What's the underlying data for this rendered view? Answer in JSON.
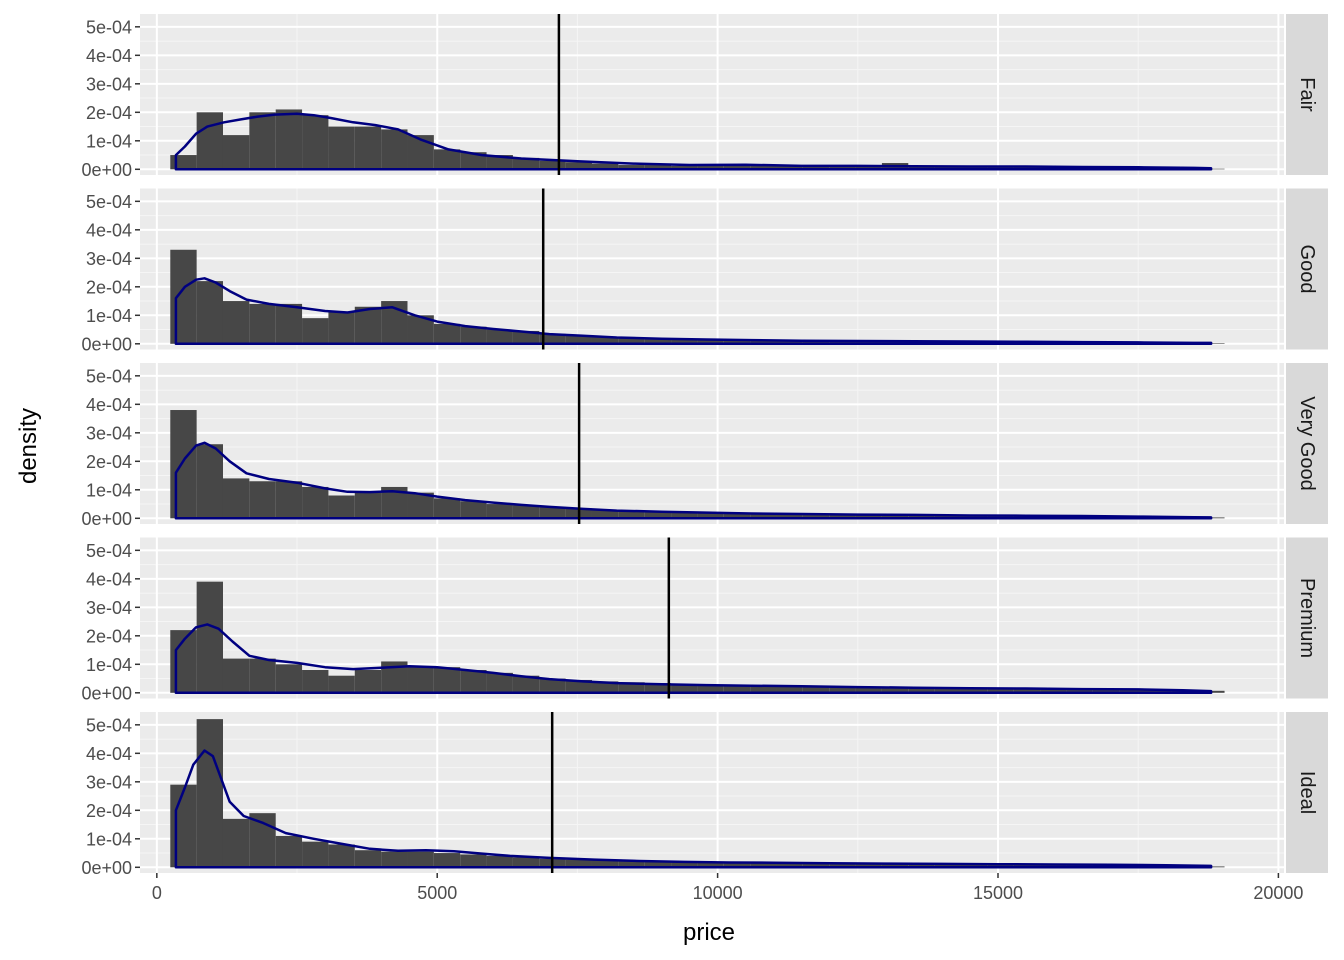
{
  "chart_data": {
    "type": "histogram",
    "facet_by": "cut",
    "xlabel": "price",
    "ylabel": "density",
    "xlim": [
      -300,
      20100
    ],
    "ylim": [
      -2e-05,
      0.000545
    ],
    "x_ticks": [
      0,
      5000,
      10000,
      15000,
      20000
    ],
    "x_tick_labels": [
      "0",
      "5000",
      "10000",
      "15000",
      "20000"
    ],
    "y_ticks": [
      0,
      0.0001,
      0.0002,
      0.0003,
      0.0004,
      0.0005
    ],
    "y_tick_labels": [
      "0e+00",
      "1e-04",
      "2e-04",
      "3e-04",
      "4e-04",
      "5e-04"
    ],
    "bin_width": 470,
    "bin_starts": [
      240,
      710,
      1180,
      1650,
      2120,
      2590,
      3060,
      3530,
      4000,
      4470,
      4940,
      5410,
      5880,
      6350,
      6820,
      7290,
      7760,
      8230,
      8700,
      9170,
      9640,
      10110,
      10580,
      11050,
      11520,
      11990,
      12460,
      12930,
      13400,
      13870,
      14340,
      14810,
      15280,
      15750,
      16220,
      16690,
      17160,
      17630,
      18100,
      18570
    ],
    "grid": true,
    "legend": "none",
    "colors": {
      "panel_background": "#ebebeb",
      "grid_major": "#ffffff",
      "grid_minor": "#f5f5f5",
      "strip_background": "#d9d9d9",
      "bars": "#474747",
      "density_line": "#000080",
      "mean_line": "#000000",
      "axis_text": "#4d4d4d",
      "title_text": "#000000"
    },
    "panels": [
      {
        "label": "Fair",
        "mean": 7170,
        "histogram": [
          5e-05,
          0.0002,
          0.00012,
          0.0002,
          0.00021,
          0.00019,
          0.00015,
          0.00015,
          0.00014,
          0.00012,
          7e-05,
          6e-05,
          5e-05,
          4e-05,
          3e-05,
          2.5e-05,
          2e-05,
          1.5e-05,
          1.5e-05,
          1.2e-05,
          1.2e-05,
          1.5e-05,
          1.2e-05,
          1e-05,
          1e-05,
          1e-05,
          1.2e-05,
          2.2e-05,
          1e-05,
          8e-06,
          8e-06,
          8e-06,
          8e-06,
          1e-05,
          8e-06,
          6e-06,
          6e-06,
          6e-06,
          4e-06,
          2e-06
        ],
        "density": [
          [
            340,
            5e-05
          ],
          [
            500,
            8e-05
          ],
          [
            700,
            0.000125
          ],
          [
            900,
            0.00015
          ],
          [
            1200,
            0.000165
          ],
          [
            1500,
            0.000175
          ],
          [
            1800,
            0.000185
          ],
          [
            2100,
            0.000192
          ],
          [
            2500,
            0.000195
          ],
          [
            2800,
            0.00019
          ],
          [
            3100,
            0.00018
          ],
          [
            3500,
            0.000165
          ],
          [
            3900,
            0.000155
          ],
          [
            4300,
            0.00014
          ],
          [
            4700,
            0.000105
          ],
          [
            5200,
            7e-05
          ],
          [
            5800,
            5e-05
          ],
          [
            6500,
            3.8e-05
          ],
          [
            7500,
            2.8e-05
          ],
          [
            8500,
            2e-05
          ],
          [
            9500,
            1.5e-05
          ],
          [
            10500,
            1.6e-05
          ],
          [
            11500,
            1.2e-05
          ],
          [
            12500,
            1.2e-05
          ],
          [
            13500,
            1.1e-05
          ],
          [
            14500,
            1e-05
          ],
          [
            15500,
            1e-05
          ],
          [
            16500,
            8e-06
          ],
          [
            17500,
            7e-06
          ],
          [
            18500,
            5e-06
          ],
          [
            18800,
            4e-06
          ]
        ]
      },
      {
        "label": "Good",
        "mean": 6890,
        "histogram": [
          0.00033,
          0.00022,
          0.00015,
          0.00014,
          0.00014,
          9e-05,
          0.00011,
          0.00013,
          0.00015,
          0.0001,
          7e-05,
          6e-05,
          5e-05,
          4.5e-05,
          3.5e-05,
          3e-05,
          2.5e-05,
          2e-05,
          1.7e-05,
          1.5e-05,
          1.3e-05,
          1.2e-05,
          1e-05,
          1e-05,
          9e-06,
          8e-06,
          8e-06,
          7e-06,
          7e-06,
          6e-06,
          6e-06,
          6e-06,
          5e-06,
          5e-06,
          5e-06,
          4e-06,
          4e-06,
          3e-06,
          3e-06,
          2e-06
        ],
        "density": [
          [
            340,
            0.00016
          ],
          [
            500,
            0.0002
          ],
          [
            700,
            0.000225
          ],
          [
            850,
            0.00023
          ],
          [
            1050,
            0.000215
          ],
          [
            1300,
            0.000185
          ],
          [
            1600,
            0.000155
          ],
          [
            2000,
            0.00014
          ],
          [
            2500,
            0.000128
          ],
          [
            3000,
            0.000115
          ],
          [
            3400,
            0.00011
          ],
          [
            3800,
            0.000122
          ],
          [
            4200,
            0.000128
          ],
          [
            4600,
            0.0001
          ],
          [
            5000,
            7.8e-05
          ],
          [
            5500,
            6.2e-05
          ],
          [
            6000,
            5.2e-05
          ],
          [
            6500,
            4.3e-05
          ],
          [
            7000,
            3.4e-05
          ],
          [
            7600,
            2.8e-05
          ],
          [
            8200,
            2.2e-05
          ],
          [
            9000,
            1.8e-05
          ],
          [
            9800,
            1.5e-05
          ],
          [
            10600,
            1.3e-05
          ],
          [
            11500,
            1.1e-05
          ],
          [
            12500,
            1e-05
          ],
          [
            13500,
            9e-06
          ],
          [
            14500,
            8e-06
          ],
          [
            15500,
            7e-06
          ],
          [
            16500,
            6e-06
          ],
          [
            17500,
            5e-06
          ],
          [
            18500,
            3e-06
          ],
          [
            18800,
            3e-06
          ]
        ]
      },
      {
        "label": "Very Good",
        "mean": 7530,
        "histogram": [
          0.00038,
          0.00026,
          0.00014,
          0.00013,
          0.00013,
          0.00011,
          8e-05,
          9e-05,
          0.00011,
          9e-05,
          7e-05,
          6e-05,
          5e-05,
          4.5e-05,
          4e-05,
          3.5e-05,
          3e-05,
          2.5e-05,
          2.2e-05,
          2e-05,
          1.8e-05,
          1.6e-05,
          1.5e-05,
          1.4e-05,
          1.3e-05,
          1.2e-05,
          1.1e-05,
          1e-05,
          1e-05,
          9e-06,
          9e-06,
          8e-06,
          8e-06,
          7e-06,
          7e-06,
          6e-06,
          5e-06,
          5e-06,
          4e-06,
          3e-06
        ],
        "density": [
          [
            340,
            0.00016
          ],
          [
            500,
            0.00021
          ],
          [
            700,
            0.000255
          ],
          [
            850,
            0.000265
          ],
          [
            1050,
            0.000245
          ],
          [
            1300,
            0.0002
          ],
          [
            1600,
            0.000158
          ],
          [
            2000,
            0.000138
          ],
          [
            2500,
            0.000125
          ],
          [
            3000,
            0.000105
          ],
          [
            3400,
            9.3e-05
          ],
          [
            3800,
            9.2e-05
          ],
          [
            4200,
            9.5e-05
          ],
          [
            4600,
            8.8e-05
          ],
          [
            5000,
            7.6e-05
          ],
          [
            5500,
            6.4e-05
          ],
          [
            6000,
            5.5e-05
          ],
          [
            6500,
            4.7e-05
          ],
          [
            7000,
            4e-05
          ],
          [
            7600,
            3.3e-05
          ],
          [
            8200,
            2.7e-05
          ],
          [
            9000,
            2.3e-05
          ],
          [
            9800,
            2e-05
          ],
          [
            10600,
            1.7e-05
          ],
          [
            11500,
            1.5e-05
          ],
          [
            12500,
            1.3e-05
          ],
          [
            13500,
            1.2e-05
          ],
          [
            14500,
            1e-05
          ],
          [
            15500,
            9e-06
          ],
          [
            16500,
            8e-06
          ],
          [
            17500,
            6e-06
          ],
          [
            18500,
            4e-06
          ],
          [
            18800,
            3e-06
          ]
        ]
      },
      {
        "label": "Premium",
        "mean": 9130,
        "histogram": [
          0.00022,
          0.00039,
          0.00012,
          0.00012,
          0.0001,
          8e-05,
          6e-05,
          8e-05,
          0.00011,
          9e-05,
          9e-05,
          8e-05,
          7e-05,
          6e-05,
          5e-05,
          4.5e-05,
          4e-05,
          3.7e-05,
          3.4e-05,
          3e-05,
          2.8e-05,
          2.6e-05,
          2.4e-05,
          2.2e-05,
          2e-05,
          1.9e-05,
          1.8e-05,
          1.7e-05,
          1.6e-05,
          1.5e-05,
          1.4e-05,
          1.3e-05,
          1.3e-05,
          1.2e-05,
          1.2e-05,
          1.1e-05,
          1e-05,
          1e-05,
          9e-06,
          7e-06
        ],
        "density": [
          [
            340,
            0.00015
          ],
          [
            500,
            0.00019
          ],
          [
            700,
            0.00023
          ],
          [
            900,
            0.00024
          ],
          [
            1100,
            0.000225
          ],
          [
            1350,
            0.00018
          ],
          [
            1650,
            0.00013
          ],
          [
            2000,
            0.000115
          ],
          [
            2500,
            0.000105
          ],
          [
            3000,
            9e-05
          ],
          [
            3500,
            8.3e-05
          ],
          [
            4000,
            8.8e-05
          ],
          [
            4500,
            9.3e-05
          ],
          [
            5000,
            9e-05
          ],
          [
            5500,
            8e-05
          ],
          [
            6000,
            7e-05
          ],
          [
            6500,
            5.8e-05
          ],
          [
            7000,
            4.8e-05
          ],
          [
            7600,
            4e-05
          ],
          [
            8200,
            3.4e-05
          ],
          [
            9000,
            3e-05
          ],
          [
            9800,
            2.7e-05
          ],
          [
            10600,
            2.5e-05
          ],
          [
            11500,
            2.3e-05
          ],
          [
            12500,
            2e-05
          ],
          [
            13500,
            1.8e-05
          ],
          [
            14500,
            1.6e-05
          ],
          [
            15500,
            1.5e-05
          ],
          [
            16500,
            1.3e-05
          ],
          [
            17500,
            1.2e-05
          ],
          [
            18300,
            9e-06
          ],
          [
            18800,
            6e-06
          ]
        ]
      },
      {
        "label": "Ideal",
        "mean": 7050,
        "histogram": [
          0.00029,
          0.00052,
          0.00017,
          0.00019,
          0.00011,
          9e-05,
          8e-05,
          6e-05,
          5.5e-05,
          5.5e-05,
          5e-05,
          4.5e-05,
          4e-05,
          3.5e-05,
          3e-05,
          2.7e-05,
          2.4e-05,
          2.1e-05,
          1.9e-05,
          1.7e-05,
          1.6e-05,
          1.5e-05,
          1.5e-05,
          1.4e-05,
          1.3e-05,
          1.2e-05,
          1.1e-05,
          1.1e-05,
          1e-05,
          1e-05,
          9e-06,
          9e-06,
          8e-06,
          8e-06,
          7e-06,
          7e-06,
          6e-06,
          5e-06,
          4e-06,
          3e-06
        ],
        "density": [
          [
            340,
            0.0002
          ],
          [
            500,
            0.00028
          ],
          [
            650,
            0.00036
          ],
          [
            850,
            0.00041
          ],
          [
            1000,
            0.00039
          ],
          [
            1150,
            0.00031
          ],
          [
            1300,
            0.00023
          ],
          [
            1550,
            0.00018
          ],
          [
            1900,
            0.000155
          ],
          [
            2300,
            0.00012
          ],
          [
            2800,
            0.0001
          ],
          [
            3300,
            8.2e-05
          ],
          [
            3800,
            6.5e-05
          ],
          [
            4300,
            5.8e-05
          ],
          [
            4800,
            6e-05
          ],
          [
            5300,
            5.6e-05
          ],
          [
            5800,
            4.8e-05
          ],
          [
            6300,
            4e-05
          ],
          [
            7000,
            3.3e-05
          ],
          [
            7800,
            2.7e-05
          ],
          [
            8600,
            2.2e-05
          ],
          [
            9400,
            1.9e-05
          ],
          [
            10200,
            1.7e-05
          ],
          [
            11000,
            1.6e-05
          ],
          [
            12000,
            1.4e-05
          ],
          [
            13000,
            1.3e-05
          ],
          [
            14000,
            1.2e-05
          ],
          [
            15000,
            1.1e-05
          ],
          [
            16000,
            1e-05
          ],
          [
            17000,
            9e-06
          ],
          [
            18000,
            7e-06
          ],
          [
            18800,
            5e-06
          ]
        ]
      }
    ]
  }
}
